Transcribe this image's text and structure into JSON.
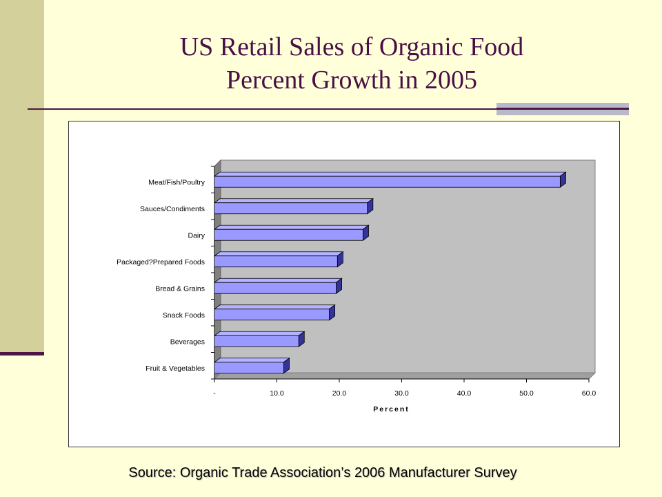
{
  "slide": {
    "title_line1": "US Retail Sales of Organic Food",
    "title_line2": "Percent Growth in 2005",
    "source": "Source: Organic Trade Association’s 2006 Manufacturer Survey"
  },
  "colors": {
    "background": "#ffffd9",
    "accent_band": "#d4d09c",
    "title": "#4a0f45",
    "bar_front": "#9999ff",
    "bar_top": "#b3b3ff",
    "bar_side": "#33339a",
    "plot_area": "#c0c0c0"
  },
  "chart_data": {
    "type": "bar",
    "orientation": "horizontal",
    "style": "3d",
    "categories": [
      "Meat/Fish/Poultry",
      "Sauces/Condiments",
      "Dairy",
      "Packaged?Prepared Foods",
      "Bread & Grains",
      "Snack Foods",
      "Beverages",
      "Fruit & Vegetables"
    ],
    "values": [
      55.4,
      24.5,
      23.8,
      19.7,
      19.5,
      18.4,
      13.5,
      11.1
    ],
    "xlabel": "Percent",
    "xlim": [
      0,
      60
    ],
    "xticks": [
      "-",
      "10.0",
      "20.0",
      "30.0",
      "40.0",
      "50.0",
      "60.0"
    ],
    "grid": false,
    "legend": "none"
  }
}
